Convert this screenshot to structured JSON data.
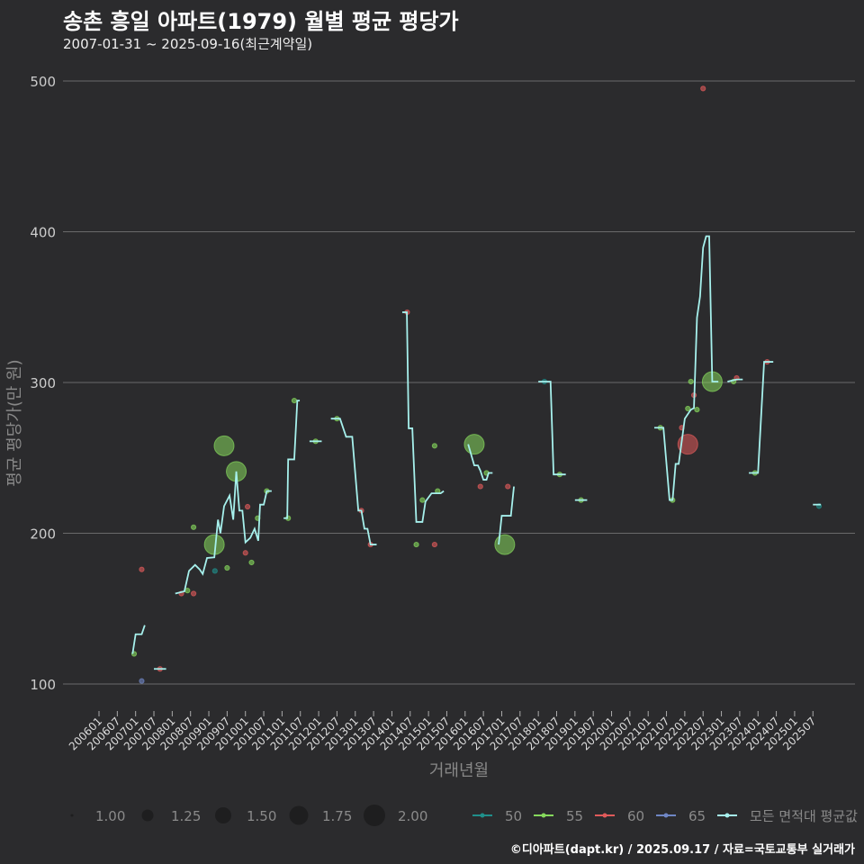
{
  "header": {
    "title": "송촌 흥일 아파트(1979) 월별 평균 평당가",
    "subtitle": "2007-01-31 ~ 2025-09-16(최근계약일)"
  },
  "footer": "©디아파트(dapt.kr) / 2025.09.17 / 자료=국토교통부 실거래가",
  "colors": {
    "50": "#1f8f8a",
    "55": "#86d95c",
    "60": "#e05a5a",
    "65": "#6f86c4",
    "avg": "#a6f0ec",
    "grid": "#6a6a6a",
    "bg": "#2b2b2d"
  },
  "chart_data": {
    "type": "line",
    "title": "송촌 흥일 아파트(1979) 월별 평균 평당가",
    "xlabel": "거래년월",
    "ylabel": "평균 평당가(만 원)",
    "x_unit": "months since 2006-01",
    "ylim": [
      100,
      500
    ],
    "yticks": [
      100,
      200,
      300,
      400,
      500
    ],
    "xtick_labels": [
      "200601",
      "200607",
      "200701",
      "200707",
      "200801",
      "200807",
      "200901",
      "200907",
      "201001",
      "201007",
      "201101",
      "201107",
      "201201",
      "201207",
      "201301",
      "201307",
      "201401",
      "201407",
      "201501",
      "201507",
      "201601",
      "201607",
      "201701",
      "201707",
      "201801",
      "201807",
      "201901",
      "201907",
      "202001",
      "202007",
      "202101",
      "202107",
      "202201",
      "202207",
      "202301",
      "202307",
      "202401",
      "202407",
      "202501",
      "202507"
    ],
    "size_legend": {
      "title": "",
      "values": [
        "1.00",
        "1.25",
        "1.50",
        "1.75",
        "2.00"
      ]
    },
    "color_legend": [
      {
        "key": "50",
        "label": "50"
      },
      {
        "key": "55",
        "label": "55"
      },
      {
        "key": "60",
        "label": "60"
      },
      {
        "key": "65",
        "label": "65"
      },
      {
        "key": "avg",
        "label": "모든 면적대 평균값"
      }
    ],
    "avg_line_segments": [
      [
        [
          11,
          120
        ],
        [
          12,
          133
        ],
        [
          14,
          133
        ],
        [
          15,
          139
        ]
      ],
      [
        [
          18,
          110
        ],
        [
          22,
          110
        ]
      ],
      [
        [
          25,
          160
        ],
        [
          28,
          161.5
        ],
        [
          29.5,
          175
        ],
        [
          31.5,
          179
        ],
        [
          33,
          176
        ],
        [
          34,
          173
        ],
        [
          35.4,
          183.6
        ],
        [
          37.8,
          184
        ],
        [
          39,
          209
        ],
        [
          39.8,
          200
        ],
        [
          41,
          218
        ],
        [
          42.8,
          225
        ],
        [
          44,
          209
        ],
        [
          45,
          241
        ],
        [
          46,
          215
        ],
        [
          47,
          215
        ],
        [
          48,
          194
        ],
        [
          49.6,
          197
        ],
        [
          51,
          203
        ],
        [
          52.2,
          195
        ],
        [
          52.8,
          219
        ],
        [
          54,
          219
        ],
        [
          55,
          228
        ],
        [
          56.6,
          228
        ]
      ],
      [
        [
          60.5,
          210
        ],
        [
          61.7,
          210
        ],
        [
          62,
          249
        ],
        [
          64,
          249
        ],
        [
          65,
          288
        ],
        [
          65.8,
          288
        ]
      ],
      [
        [
          69,
          261
        ],
        [
          73,
          261
        ]
      ],
      [
        [
          76,
          276
        ],
        [
          79,
          276
        ],
        [
          81,
          264
        ],
        [
          83,
          264
        ],
        [
          85,
          215
        ],
        [
          86,
          215
        ],
        [
          87,
          203
        ],
        [
          88,
          203
        ],
        [
          89,
          192.5
        ],
        [
          91,
          192.5
        ]
      ],
      [
        [
          99.4,
          346.6
        ],
        [
          100.9,
          346.6
        ],
        [
          101.5,
          269.6
        ],
        [
          102.7,
          269.6
        ],
        [
          104,
          207.5
        ],
        [
          106,
          207.5
        ],
        [
          107,
          221
        ],
        [
          109,
          226.5
        ],
        [
          112,
          226.5
        ],
        [
          113,
          228
        ]
      ],
      [
        [
          121,
          259
        ],
        [
          123,
          245
        ],
        [
          124.2,
          245
        ],
        [
          125,
          241.5
        ],
        [
          126,
          235.5
        ],
        [
          127,
          235.5
        ],
        [
          127.7,
          240
        ],
        [
          129,
          240
        ]
      ],
      [
        [
          131,
          192.5
        ],
        [
          132,
          211.6
        ],
        [
          135,
          211.6
        ],
        [
          136,
          231
        ]
      ],
      [
        [
          144,
          300.6
        ],
        [
          148,
          300.6
        ],
        [
          149,
          239
        ],
        [
          153,
          239
        ]
      ],
      [
        [
          156,
          222
        ],
        [
          160,
          222
        ]
      ],
      [
        [
          182,
          270
        ],
        [
          185,
          270
        ],
        [
          187,
          222
        ],
        [
          188,
          222
        ],
        [
          189,
          246
        ],
        [
          190,
          246
        ],
        [
          192,
          276
        ],
        [
          194,
          282
        ],
        [
          195,
          283
        ],
        [
          196,
          343
        ],
        [
          197,
          357
        ],
        [
          198,
          389.5
        ],
        [
          199,
          397
        ],
        [
          200,
          397
        ],
        [
          201,
          300.6
        ],
        [
          203,
          300.6
        ]
      ],
      [
        [
          206,
          300.6
        ],
        [
          209,
          302
        ],
        [
          211,
          302
        ]
      ],
      [
        [
          213,
          240
        ],
        [
          216,
          240
        ],
        [
          218,
          313.7
        ],
        [
          221,
          313.7
        ]
      ],
      [
        [
          234,
          219
        ],
        [
          236.6,
          219
        ]
      ]
    ],
    "points": [
      [
        11.5,
        120,
        "55",
        1
      ],
      [
        14,
        176,
        "60",
        1
      ],
      [
        14,
        102,
        "65",
        1
      ],
      [
        20,
        110,
        "60",
        1
      ],
      [
        27,
        160,
        "60",
        1
      ],
      [
        29,
        162,
        "55",
        1
      ],
      [
        31,
        160,
        "60",
        1
      ],
      [
        31,
        204,
        "55",
        1
      ],
      [
        37.8,
        192.5,
        "55",
        1.75
      ],
      [
        41,
        258,
        "55",
        1.75
      ],
      [
        45,
        241,
        "55",
        1.75
      ],
      [
        38,
        175,
        "50",
        1
      ],
      [
        42,
        177,
        "55",
        1
      ],
      [
        48.7,
        217.6,
        "60",
        1
      ],
      [
        48,
        187,
        "60",
        1
      ],
      [
        50,
        180.6,
        "55",
        1
      ],
      [
        52,
        210,
        "55",
        1
      ],
      [
        55,
        228,
        "55",
        1
      ],
      [
        62,
        210,
        "55",
        1
      ],
      [
        64,
        288,
        "55",
        1
      ],
      [
        71,
        261,
        "55",
        1
      ],
      [
        78,
        276,
        "55",
        1
      ],
      [
        86,
        215,
        "60",
        1
      ],
      [
        89,
        192.5,
        "60",
        1
      ],
      [
        101,
        346.6,
        "60",
        1
      ],
      [
        104,
        192.5,
        "55",
        1
      ],
      [
        106,
        222,
        "55",
        1
      ],
      [
        110,
        258,
        "55",
        1
      ],
      [
        110,
        192.5,
        "60",
        1
      ],
      [
        111,
        228,
        "55",
        1
      ],
      [
        123,
        259,
        "55",
        1.75
      ],
      [
        125,
        231,
        "60",
        1
      ],
      [
        127,
        240,
        "55",
        1
      ],
      [
        134,
        231,
        "60",
        1
      ],
      [
        133,
        192.5,
        "55",
        1.75
      ],
      [
        146,
        300.6,
        "50",
        1
      ],
      [
        151,
        239,
        "55",
        1
      ],
      [
        158,
        222,
        "55",
        1
      ],
      [
        184,
        270,
        "55",
        1
      ],
      [
        188,
        222,
        "55",
        1
      ],
      [
        191,
        270,
        "60",
        1
      ],
      [
        193,
        259,
        "60",
        1.75
      ],
      [
        193,
        282.7,
        "55",
        1
      ],
      [
        196,
        282,
        "55",
        1
      ],
      [
        195,
        291.6,
        "60",
        1
      ],
      [
        194,
        300.6,
        "55",
        1
      ],
      [
        201,
        300.6,
        "55",
        1.75
      ],
      [
        208,
        300.6,
        "55",
        1
      ],
      [
        209,
        303,
        "60",
        1
      ],
      [
        215,
        240,
        "55",
        1
      ],
      [
        219,
        313.7,
        "60",
        1
      ],
      [
        236,
        218,
        "50",
        1
      ],
      [
        198,
        495,
        "60",
        1
      ]
    ]
  }
}
